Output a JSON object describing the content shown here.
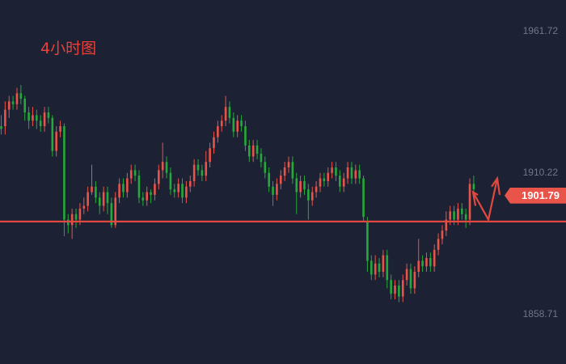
{
  "chart_data": {
    "type": "candlestick",
    "title": "4小时图",
    "y_axis": {
      "ticks": [
        {
          "value": 1961.72,
          "label": "1961.72"
        },
        {
          "value": 1910.22,
          "label": "1910.22"
        },
        {
          "value": 1858.71,
          "label": "1858.71"
        }
      ],
      "range": [
        1844,
        1978
      ]
    },
    "current_price": {
      "value": 1901.79,
      "label": "1901.79"
    },
    "horizontal_level": 1892.3,
    "colors": {
      "background": "#1c2233",
      "up": "#e8534a",
      "down": "#26a93a",
      "level_line": "#e0493f",
      "axis_text": "#6f7788",
      "price_tag": "#e8534a",
      "forecast_arrow": "#e0493f"
    },
    "candles": [
      [
        1927,
        1926,
        1931,
        1924
      ],
      [
        1927,
        1933,
        1936,
        1924
      ],
      [
        1933,
        1936,
        1938,
        1930
      ],
      [
        1936,
        1935,
        1938,
        1933
      ],
      [
        1935,
        1939,
        1941,
        1933
      ],
      [
        1939,
        1937,
        1942,
        1935
      ],
      [
        1937,
        1932,
        1938,
        1929
      ],
      [
        1932,
        1929,
        1934,
        1926
      ],
      [
        1929,
        1931,
        1934,
        1927
      ],
      [
        1931,
        1929,
        1933,
        1926
      ],
      [
        1929,
        1927,
        1931,
        1925
      ],
      [
        1927,
        1932,
        1934,
        1925
      ],
      [
        1932,
        1930,
        1934,
        1928
      ],
      [
        1930,
        1918,
        1931,
        1916
      ],
      [
        1918,
        1925,
        1927,
        1916
      ],
      [
        1925,
        1927,
        1929,
        1923
      ],
      [
        1927,
        1893,
        1928,
        1887
      ],
      [
        1893,
        1891,
        1895,
        1888
      ],
      [
        1891,
        1895,
        1897,
        1886
      ],
      [
        1895,
        1893,
        1897,
        1890
      ],
      [
        1893,
        1897,
        1899,
        1891
      ],
      [
        1897,
        1898,
        1901,
        1895
      ],
      [
        1898,
        1903,
        1905,
        1896
      ],
      [
        1903,
        1905,
        1913,
        1902
      ],
      [
        1905,
        1901,
        1907,
        1899
      ],
      [
        1901,
        1898,
        1903,
        1895
      ],
      [
        1898,
        1903,
        1905,
        1896
      ],
      [
        1903,
        1899,
        1905,
        1895
      ],
      [
        1899,
        1891,
        1901,
        1890
      ],
      [
        1891,
        1901,
        1903,
        1890
      ],
      [
        1901,
        1906,
        1908,
        1899
      ],
      [
        1906,
        1903,
        1908,
        1901
      ],
      [
        1903,
        1908,
        1910,
        1901
      ],
      [
        1908,
        1911,
        1913,
        1906
      ],
      [
        1911,
        1909,
        1913,
        1907
      ],
      [
        1909,
        1901,
        1911,
        1899
      ],
      [
        1901,
        1900,
        1903,
        1898
      ],
      [
        1900,
        1903,
        1905,
        1898
      ],
      [
        1903,
        1902,
        1904,
        1899
      ],
      [
        1902,
        1906,
        1908,
        1900
      ],
      [
        1906,
        1911,
        1913,
        1904
      ],
      [
        1911,
        1914,
        1921,
        1908
      ],
      [
        1914,
        1910,
        1916,
        1908
      ],
      [
        1910,
        1904,
        1912,
        1902
      ],
      [
        1904,
        1903,
        1906,
        1901
      ],
      [
        1903,
        1906,
        1908,
        1901
      ],
      [
        1906,
        1901,
        1908,
        1899
      ],
      [
        1901,
        1905,
        1907,
        1899
      ],
      [
        1905,
        1907,
        1909,
        1903
      ],
      [
        1907,
        1913,
        1915,
        1905
      ],
      [
        1913,
        1911,
        1915,
        1909
      ],
      [
        1911,
        1909,
        1913,
        1907
      ],
      [
        1909,
        1914,
        1918,
        1907
      ],
      [
        1914,
        1919,
        1921,
        1912
      ],
      [
        1919,
        1923,
        1925,
        1917
      ],
      [
        1923,
        1927,
        1929,
        1921
      ],
      [
        1927,
        1929,
        1931,
        1925
      ],
      [
        1929,
        1934,
        1938,
        1927
      ],
      [
        1934,
        1930,
        1936,
        1928
      ],
      [
        1930,
        1925,
        1932,
        1923
      ],
      [
        1925,
        1929,
        1931,
        1923
      ],
      [
        1929,
        1927,
        1931,
        1925
      ],
      [
        1927,
        1920,
        1929,
        1918
      ],
      [
        1920,
        1916,
        1922,
        1914
      ],
      [
        1916,
        1920,
        1922,
        1914
      ],
      [
        1920,
        1917,
        1922,
        1915
      ],
      [
        1917,
        1914,
        1919,
        1912
      ],
      [
        1914,
        1910,
        1916,
        1908
      ],
      [
        1910,
        1905,
        1912,
        1903
      ],
      [
        1905,
        1902,
        1907,
        1898
      ],
      [
        1902,
        1906,
        1908,
        1900
      ],
      [
        1906,
        1909,
        1911,
        1904
      ],
      [
        1909,
        1912,
        1914,
        1907
      ],
      [
        1912,
        1914,
        1916,
        1910
      ],
      [
        1914,
        1908,
        1916,
        1906
      ],
      [
        1908,
        1903,
        1910,
        1895
      ],
      [
        1903,
        1907,
        1909,
        1901
      ],
      [
        1907,
        1904,
        1909,
        1902
      ],
      [
        1904,
        1900,
        1906,
        1893
      ],
      [
        1900,
        1903,
        1905,
        1898
      ],
      [
        1903,
        1905,
        1907,
        1901
      ],
      [
        1905,
        1908,
        1910,
        1903
      ],
      [
        1908,
        1907,
        1910,
        1905
      ],
      [
        1907,
        1910,
        1912,
        1905
      ],
      [
        1910,
        1912,
        1914,
        1908
      ],
      [
        1912,
        1909,
        1914,
        1907
      ],
      [
        1909,
        1905,
        1911,
        1903
      ],
      [
        1905,
        1908,
        1910,
        1903
      ],
      [
        1908,
        1912,
        1914,
        1906
      ],
      [
        1912,
        1908,
        1914,
        1906
      ],
      [
        1908,
        1911,
        1913,
        1906
      ],
      [
        1911,
        1908,
        1913,
        1906
      ],
      [
        1908,
        1894,
        1909,
        1892
      ],
      [
        1892,
        1878,
        1894,
        1874
      ],
      [
        1878,
        1873,
        1880,
        1871
      ],
      [
        1873,
        1877,
        1880,
        1871
      ],
      [
        1877,
        1874,
        1879,
        1872
      ],
      [
        1874,
        1880,
        1882,
        1872
      ],
      [
        1880,
        1871,
        1882,
        1868
      ],
      [
        1871,
        1866,
        1873,
        1864
      ],
      [
        1866,
        1869,
        1871,
        1864
      ],
      [
        1869,
        1865,
        1871,
        1863
      ],
      [
        1865,
        1871,
        1873,
        1863
      ],
      [
        1871,
        1875,
        1877,
        1869
      ],
      [
        1875,
        1868,
        1877,
        1866
      ],
      [
        1868,
        1874,
        1876,
        1866
      ],
      [
        1874,
        1878,
        1886,
        1872
      ],
      [
        1878,
        1876,
        1880,
        1874
      ],
      [
        1876,
        1879,
        1881,
        1874
      ],
      [
        1879,
        1876,
        1881,
        1874
      ],
      [
        1876,
        1882,
        1884,
        1874
      ],
      [
        1882,
        1886,
        1888,
        1880
      ],
      [
        1886,
        1889,
        1891,
        1884
      ],
      [
        1889,
        1893,
        1896,
        1887
      ],
      [
        1893,
        1896,
        1898,
        1891
      ],
      [
        1896,
        1893,
        1898,
        1891
      ],
      [
        1893,
        1897,
        1899,
        1891
      ],
      [
        1897,
        1895,
        1899,
        1893
      ],
      [
        1895,
        1893,
        1897,
        1890
      ],
      [
        1893,
        1906,
        1908,
        1891
      ],
      [
        1906,
        1904,
        1909,
        1902
      ]
    ]
  }
}
